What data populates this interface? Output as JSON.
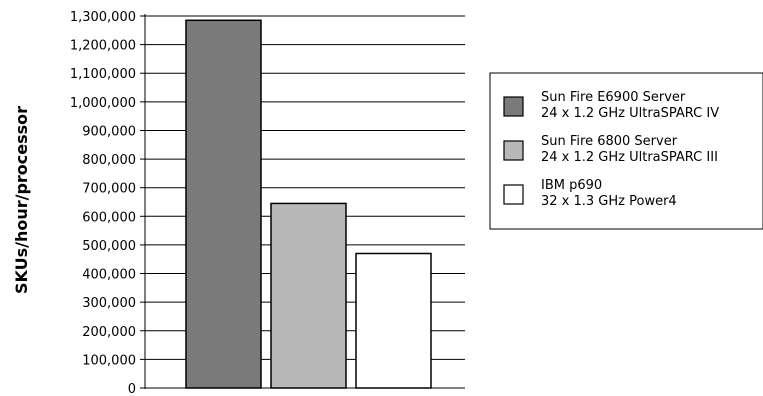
{
  "chart_data": {
    "type": "bar",
    "title": "",
    "xlabel": "",
    "ylabel": "SKUs/hour/processor",
    "ylim": [
      0,
      1300000
    ],
    "ytick_step": 100000,
    "yticks": [
      "0",
      "100,000",
      "200,000",
      "300,000",
      "400,000",
      "500,000",
      "600,000",
      "700,000",
      "800,000",
      "900,000",
      "1,000,000",
      "1,100,000",
      "1,200,000",
      "1,300,000"
    ],
    "grid": true,
    "legend_position": "right",
    "series": [
      {
        "name_line1": "Sun Fire E6900 Server",
        "name_line2": "24 x 1.2 GHz UltraSPARC IV",
        "value": 1285000,
        "color": "#7a7a7a"
      },
      {
        "name_line1": "Sun Fire 6800 Server",
        "name_line2": "24 x 1.2 GHz UltraSPARC III",
        "value": 645000,
        "color": "#b8b8b8"
      },
      {
        "name_line1": "IBM p690",
        "name_line2": "32 x 1.3 GHz Power4",
        "value": 470000,
        "color": "#ffffff"
      }
    ]
  }
}
